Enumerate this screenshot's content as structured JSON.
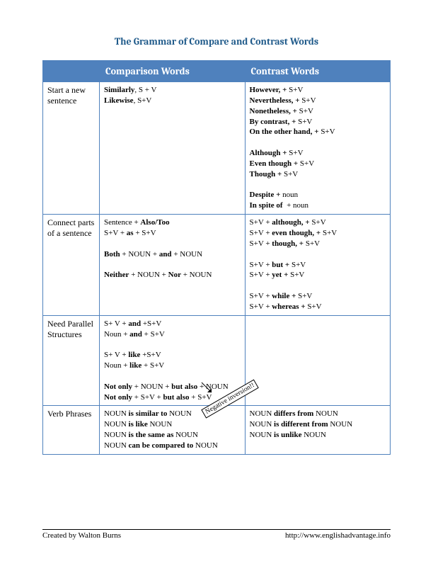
{
  "title": "The Grammar of Compare and Contrast Words",
  "headers": {
    "empty": "",
    "col1": "Comparison Words",
    "col2": "Contrast Words"
  },
  "rows": {
    "r1": {
      "label": "Start a new sentence",
      "comp": "<b>Similarly</b>, S + V<br><b>Likewise</b>, S+V",
      "contr": "<b>However, +</b> S+V<br><b>Nevertheless, +</b> S+V<br><b>Nonetheless, +</b> S+V<br><b>By contrast, +</b> S+V<br><b>On the other hand, +</b> S+V<br><br><b>Although +</b> S+V<br><b>Even though +</b> S+V<br><b>Though +</b> S+V<br><br><b>Despite +</b> noun<br><b>In spite of</b>&nbsp;&nbsp;+ noun"
    },
    "r2": {
      "label": "Connect parts of a sentence",
      "comp": "Sentence + <b>Also/Too</b><br>S+V + <b>as</b> + S+V<br><br><b>Both</b> + NOUN + <b>and</b> + NOUN<br><br><b>Neither</b> + NOUN + <b>Nor</b> + NOUN<br><br>&nbsp;",
      "contr": "S+V + <b>although, +</b> S+V<br>S+V + <b>even though, +</b> S+V<br>S+V + <b>though, +</b> S+V<br><br>S+V + <b>but +</b> S+V<br>S+V + <b>yet +</b> S+V<br><br>S+V + <b>while +</b> S+V<br>S+V + <b>whereas +</b> S+V"
    },
    "r3": {
      "label": "Need Parallel Structures",
      "comp": "S+ V + <b>and</b> +S+V<br>Noun + <b>and</b> + S+V<br><br>S+ V + <b>like</b> +S+V<br>Noun + <b>like</b> + S+V<br><br><b>Not only</b> + NOUN + <b>but also</b> + NOUN<br><b>Not only</b> + S+V + <b>but also</b> + S+V",
      "contr": ""
    },
    "r4": {
      "label": "Verb Phrases",
      "comp": "NOUN <b>is similar to</b> NOUN<br>NOUN <b>is like</b> NOUN<br>NOUN <b>is the same as</b> NOUN<br>NOUN <b>can be compared to</b> NOUN",
      "contr": "NOUN <b>differs from</b> NOUN<br>NOUN <b>is different from</b> NOUN<br>NOUN <b>is unlike</b> NOUN"
    }
  },
  "callout": "Negative inversion!!",
  "footer": {
    "left": "Created by Walton Burns",
    "right": "http://www.englishadvantage.info"
  },
  "colors": {
    "header_bg": "#4f81bd",
    "header_text": "#ffffff",
    "border": "#4f81bd",
    "title": "#1f5a8a"
  }
}
